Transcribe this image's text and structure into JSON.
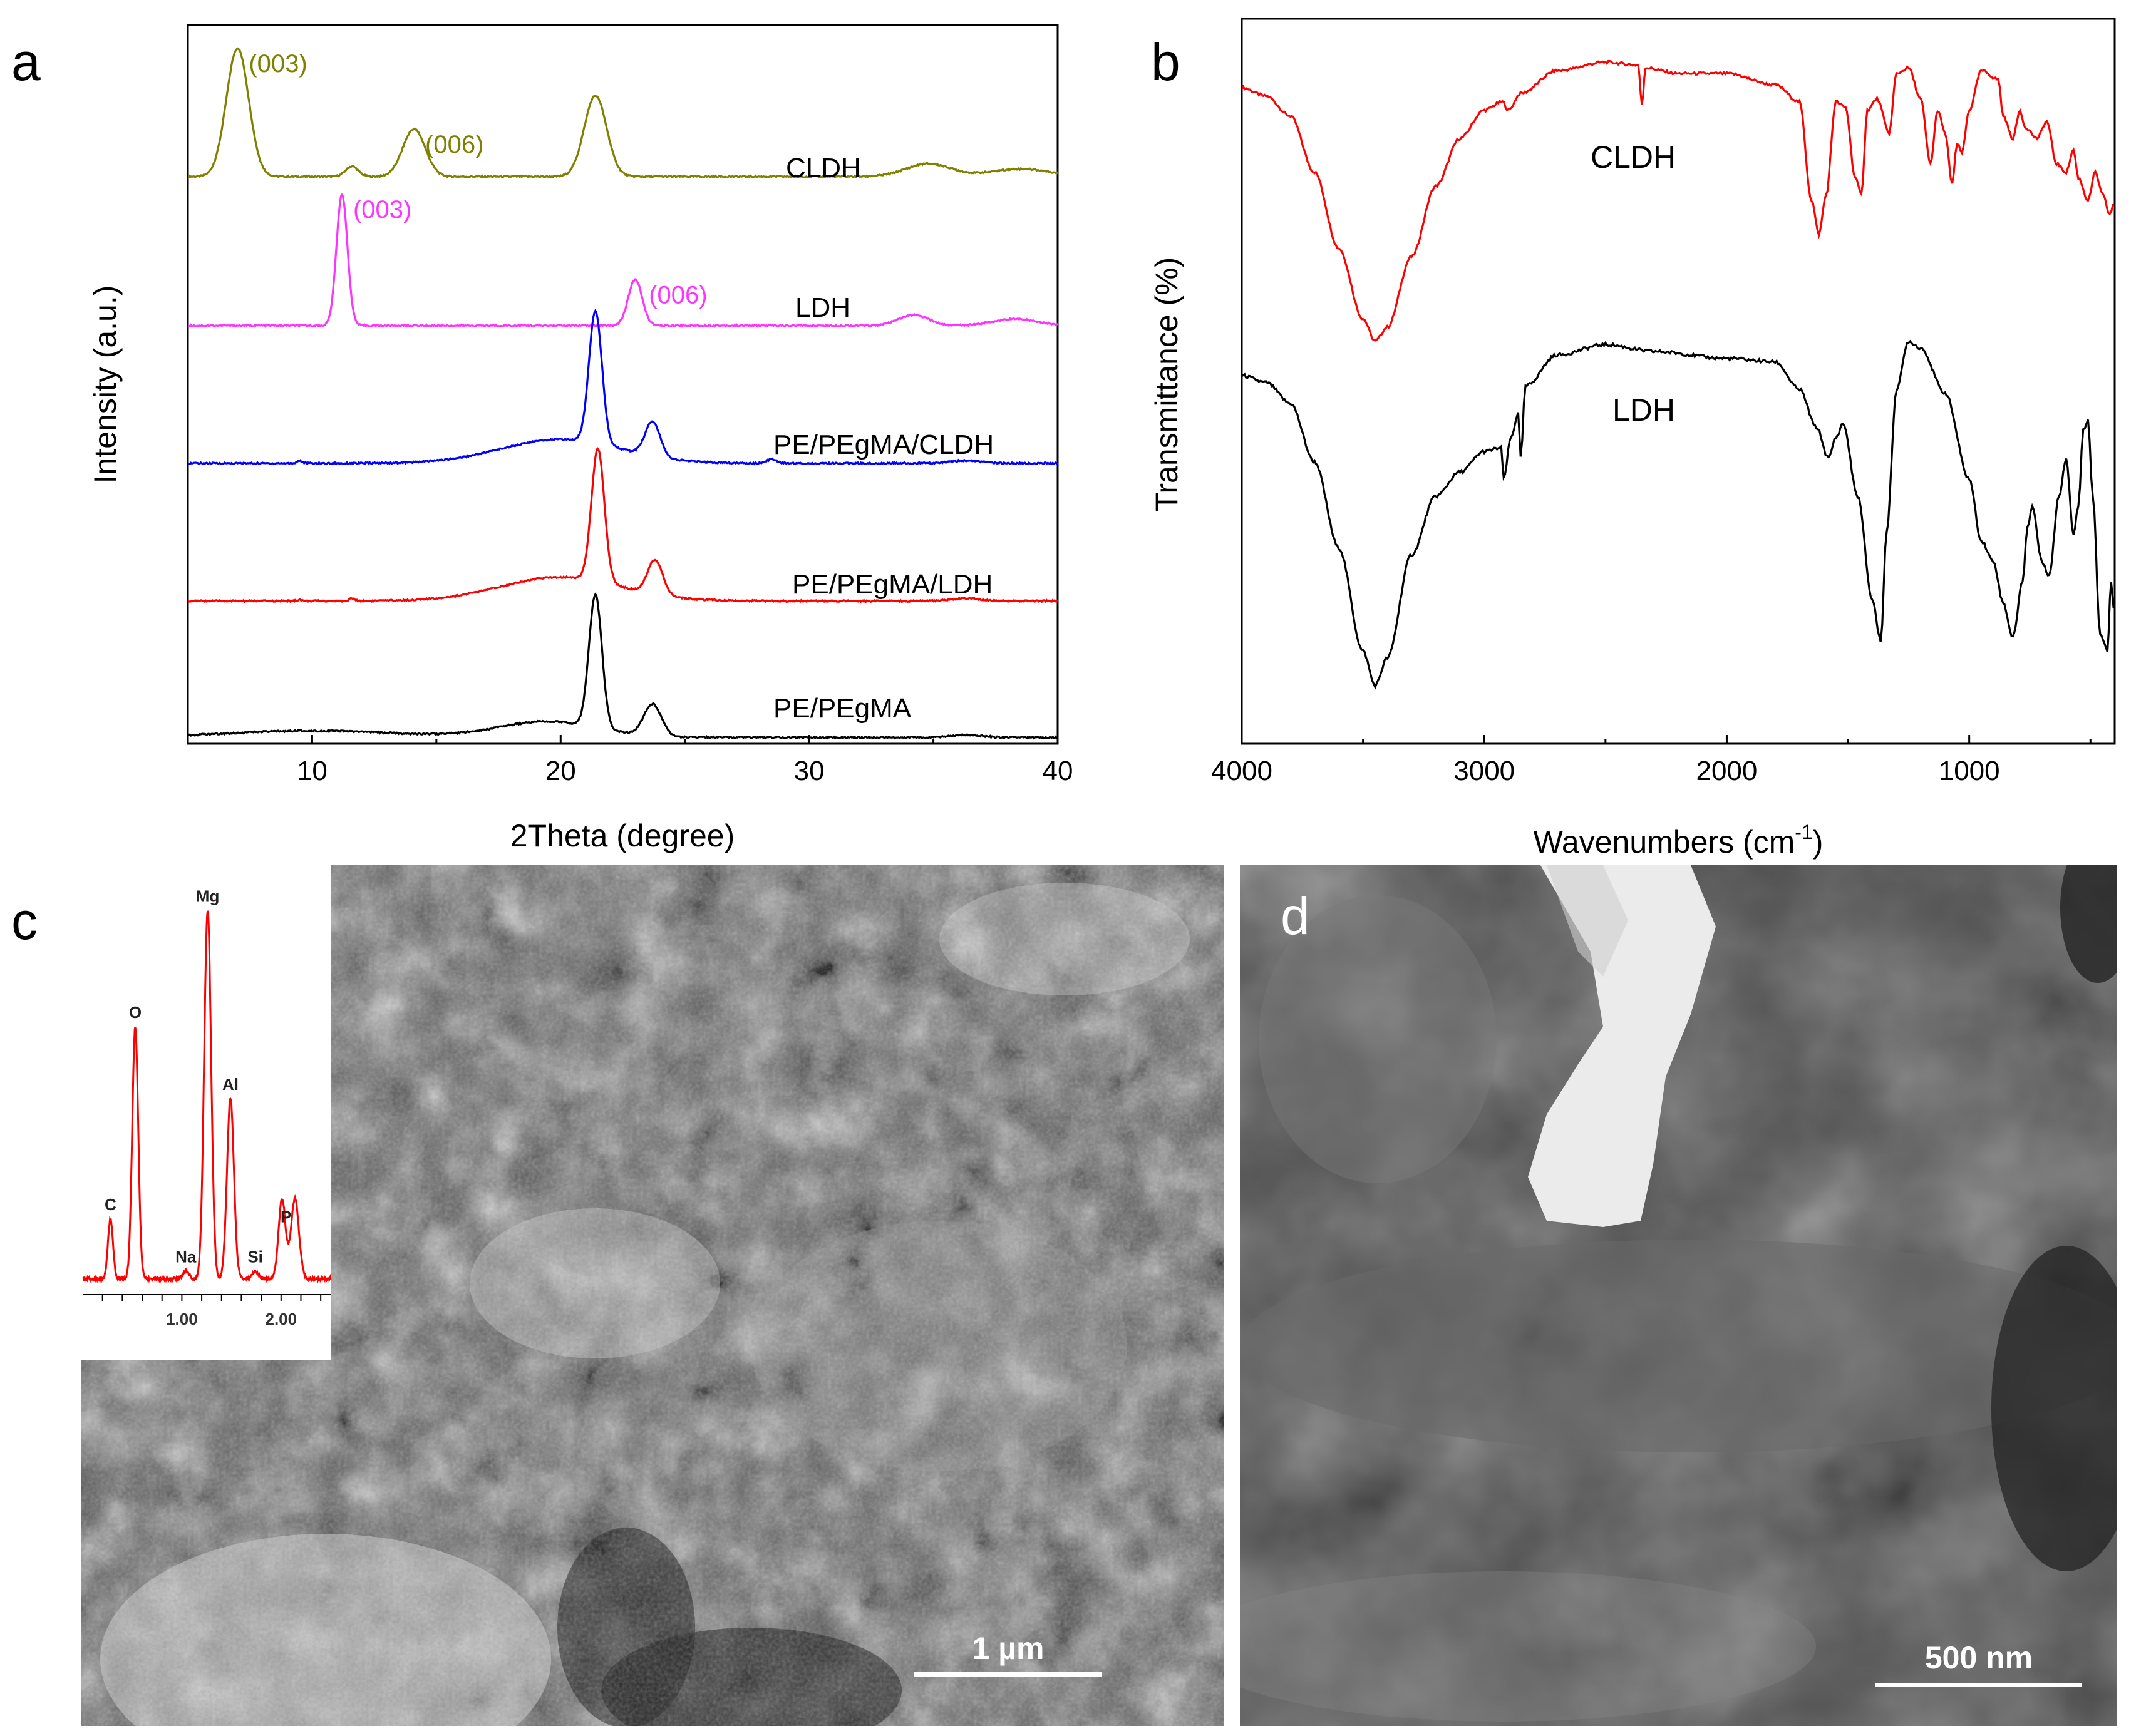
{
  "panels": {
    "a": "a",
    "b": "b",
    "c": "c",
    "d": "d"
  },
  "chart_data": [
    {
      "type": "line",
      "panel": "a",
      "xlabel": "2Theta (degree)",
      "ylabel": "Intensity (a.u.)",
      "xlim": [
        5,
        40
      ],
      "xticks": [
        10,
        20,
        30,
        40
      ],
      "grid": false,
      "legend": "none",
      "series": [
        {
          "name": "CLDH",
          "color": "#808000",
          "baseline": 0,
          "peaks": [
            [
              7,
              1.0,
              0.45
            ],
            [
              11.6,
              0.08,
              0.25
            ],
            [
              14.1,
              0.37,
              0.45
            ],
            [
              21.4,
              0.63,
              0.45
            ],
            [
              34.8,
              0.1,
              0.9
            ],
            [
              38.5,
              0.06,
              1.2
            ]
          ],
          "labels": [
            {
              "text": "(003)",
              "x": 7.3
            },
            {
              "text": "(006)",
              "x": 14.4
            }
          ]
        },
        {
          "name": "LDH",
          "color": "#ff33ff",
          "baseline": 0,
          "peaks": [
            [
              11.2,
              1.0,
              0.22
            ],
            [
              23.0,
              0.35,
              0.28
            ],
            [
              34.2,
              0.08,
              0.6
            ],
            [
              38.3,
              0.05,
              0.9
            ]
          ],
          "labels": [
            {
              "text": "(003)",
              "x": 11.5
            },
            {
              "text": "(006)",
              "x": 23.4
            }
          ]
        },
        {
          "name": "PE/PEgMA/CLDH",
          "color": "#0000ff",
          "baseline": 0,
          "peaks": [
            [
              21.4,
              1.0,
              0.26
            ],
            [
              23.7,
              0.26,
              0.3
            ],
            [
              20.0,
              0.18,
              2.4
            ],
            [
              9.5,
              0.02,
              0.1
            ],
            [
              28.5,
              0.03,
              0.2
            ],
            [
              36.3,
              0.02,
              0.6
            ]
          ],
          "labels": []
        },
        {
          "name": "PE/PEgMA/LDH",
          "color": "#ff0000",
          "baseline": 0,
          "peaks": [
            [
              21.5,
              1.0,
              0.26
            ],
            [
              23.8,
              0.26,
              0.3
            ],
            [
              20.0,
              0.18,
              2.4
            ],
            [
              11.6,
              0.02,
              0.1
            ],
            [
              9.5,
              0.01,
              0.1
            ],
            [
              36.3,
              0.02,
              0.6
            ]
          ],
          "labels": []
        },
        {
          "name": "PE/PEgMA",
          "color": "#000000",
          "baseline": 0,
          "peaks": [
            [
              21.4,
              1.0,
              0.26
            ],
            [
              23.7,
              0.24,
              0.35
            ],
            [
              10.0,
              0.05,
              3.5
            ],
            [
              19.5,
              0.12,
              2.0
            ],
            [
              36.3,
              0.02,
              0.6
            ]
          ],
          "labels": []
        }
      ]
    },
    {
      "type": "line",
      "panel": "b",
      "xlabel": "Wavenumbers (cm",
      "xlabel_sup": "-1",
      "xlabel_end": ")",
      "ylabel": "Transmittance (%)",
      "xlim": [
        4000,
        400
      ],
      "xticks": [
        4000,
        3000,
        2000,
        1000
      ],
      "grid": false,
      "legend": "none",
      "series": [
        {
          "name": "CLDH",
          "color": "#ff0000",
          "points": [
            [
              4000,
              0.9
            ],
            [
              3900,
              0.87
            ],
            [
              3800,
              0.8
            ],
            [
              3700,
              0.6
            ],
            [
              3600,
              0.33
            ],
            [
              3500,
              0.08
            ],
            [
              3450,
              0.0
            ],
            [
              3400,
              0.05
            ],
            [
              3300,
              0.3
            ],
            [
              3200,
              0.55
            ],
            [
              3100,
              0.72
            ],
            [
              3000,
              0.82
            ],
            [
              2925,
              0.85
            ],
            [
              2900,
              0.82
            ],
            [
              2850,
              0.88
            ],
            [
              2700,
              0.96
            ],
            [
              2500,
              0.99
            ],
            [
              2365,
              0.98
            ],
            [
              2350,
              0.84
            ],
            [
              2335,
              0.97
            ],
            [
              2200,
              0.95
            ],
            [
              2000,
              0.95
            ],
            [
              1800,
              0.91
            ],
            [
              1700,
              0.85
            ],
            [
              1650,
              0.5
            ],
            [
              1620,
              0.38
            ],
            [
              1590,
              0.52
            ],
            [
              1550,
              0.85
            ],
            [
              1510,
              0.83
            ],
            [
              1470,
              0.58
            ],
            [
              1445,
              0.52
            ],
            [
              1420,
              0.82
            ],
            [
              1380,
              0.86
            ],
            [
              1330,
              0.74
            ],
            [
              1300,
              0.95
            ],
            [
              1250,
              0.97
            ],
            [
              1200,
              0.86
            ],
            [
              1160,
              0.63
            ],
            [
              1130,
              0.82
            ],
            [
              1100,
              0.74
            ],
            [
              1070,
              0.56
            ],
            [
              1050,
              0.7
            ],
            [
              1030,
              0.67
            ],
            [
              1000,
              0.82
            ],
            [
              950,
              0.96
            ],
            [
              880,
              0.93
            ],
            [
              860,
              0.8
            ],
            [
              820,
              0.72
            ],
            [
              790,
              0.82
            ],
            [
              770,
              0.76
            ],
            [
              720,
              0.72
            ],
            [
              680,
              0.78
            ],
            [
              640,
              0.63
            ],
            [
              600,
              0.6
            ],
            [
              570,
              0.68
            ],
            [
              550,
              0.58
            ],
            [
              510,
              0.5
            ],
            [
              480,
              0.6
            ],
            [
              450,
              0.52
            ],
            [
              420,
              0.45
            ],
            [
              400,
              0.5
            ]
          ],
          "labels": [
            {
              "text": "CLDH",
              "x": 2220
            }
          ]
        },
        {
          "name": "LDH",
          "color": "#000000",
          "points": [
            [
              4000,
              0.9
            ],
            [
              3900,
              0.88
            ],
            [
              3800,
              0.82
            ],
            [
              3700,
              0.65
            ],
            [
              3600,
              0.4
            ],
            [
              3500,
              0.1
            ],
            [
              3450,
              0.0
            ],
            [
              3400,
              0.08
            ],
            [
              3300,
              0.38
            ],
            [
              3200,
              0.55
            ],
            [
              3100,
              0.62
            ],
            [
              3000,
              0.68
            ],
            [
              2930,
              0.69
            ],
            [
              2920,
              0.6
            ],
            [
              2890,
              0.72
            ],
            [
              2860,
              0.79
            ],
            [
              2850,
              0.66
            ],
            [
              2830,
              0.87
            ],
            [
              2700,
              0.96
            ],
            [
              2500,
              0.99
            ],
            [
              2300,
              0.97
            ],
            [
              2000,
              0.95
            ],
            [
              1800,
              0.94
            ],
            [
              1700,
              0.86
            ],
            [
              1630,
              0.75
            ],
            [
              1580,
              0.66
            ],
            [
              1550,
              0.72
            ],
            [
              1520,
              0.76
            ],
            [
              1460,
              0.55
            ],
            [
              1400,
              0.25
            ],
            [
              1365,
              0.13
            ],
            [
              1340,
              0.45
            ],
            [
              1300,
              0.86
            ],
            [
              1250,
              1.0
            ],
            [
              1200,
              0.98
            ],
            [
              1100,
              0.85
            ],
            [
              1000,
              0.6
            ],
            [
              950,
              0.42
            ],
            [
              900,
              0.36
            ],
            [
              860,
              0.24
            ],
            [
              820,
              0.14
            ],
            [
              780,
              0.3
            ],
            [
              760,
              0.46
            ],
            [
              740,
              0.52
            ],
            [
              700,
              0.36
            ],
            [
              670,
              0.32
            ],
            [
              630,
              0.55
            ],
            [
              600,
              0.66
            ],
            [
              570,
              0.44
            ],
            [
              550,
              0.52
            ],
            [
              530,
              0.74
            ],
            [
              510,
              0.77
            ],
            [
              490,
              0.55
            ],
            [
              460,
              0.15
            ],
            [
              430,
              0.1
            ],
            [
              415,
              0.3
            ],
            [
              400,
              0.2
            ]
          ],
          "labels": [
            {
              "text": "LDH",
              "x": 2300
            }
          ]
        }
      ]
    },
    {
      "type": "bar",
      "panel": "c-inset",
      "xticks": [
        "1.00",
        "2.00"
      ],
      "xlim": [
        0,
        2.5
      ],
      "series": [
        {
          "name": "",
          "color": "#ff0000",
          "peaks": [
            [
              0.28,
              0.15,
              0.025
            ],
            [
              0.53,
              0.63,
              0.03
            ],
            [
              1.04,
              0.02,
              0.03
            ],
            [
              1.26,
              0.92,
              0.035
            ],
            [
              1.49,
              0.45,
              0.035
            ],
            [
              1.74,
              0.02,
              0.03
            ],
            [
              2.01,
              0.2,
              0.035
            ],
            [
              2.14,
              0.2,
              0.04
            ]
          ]
        }
      ],
      "labels": [
        {
          "text": "C",
          "x": 0.28
        },
        {
          "text": "O",
          "x": 0.53
        },
        {
          "text": "Na",
          "x": 1.04
        },
        {
          "text": "Mg",
          "x": 1.26
        },
        {
          "text": "Al",
          "x": 1.49
        },
        {
          "text": "Si",
          "x": 1.74
        },
        {
          "text": "P",
          "x": 2.05
        }
      ]
    }
  ],
  "micrographs": {
    "c_scale": "1 µm",
    "d_scale": "500 nm"
  }
}
